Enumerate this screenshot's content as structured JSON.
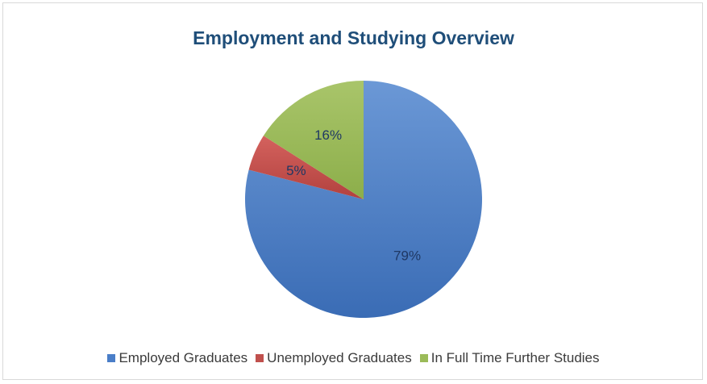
{
  "chart_data": {
    "type": "pie",
    "title": "Employment and Studying Overview",
    "categories": [
      "Employed Graduates",
      "Unemployed Graduates",
      "In Full Time Further Studies"
    ],
    "values": [
      79,
      5,
      16
    ],
    "labels": [
      "79%",
      "5%",
      "16%"
    ],
    "colors": [
      "#4a7ec8",
      "#c0504d",
      "#9bbb59"
    ],
    "legend_position": "bottom"
  }
}
